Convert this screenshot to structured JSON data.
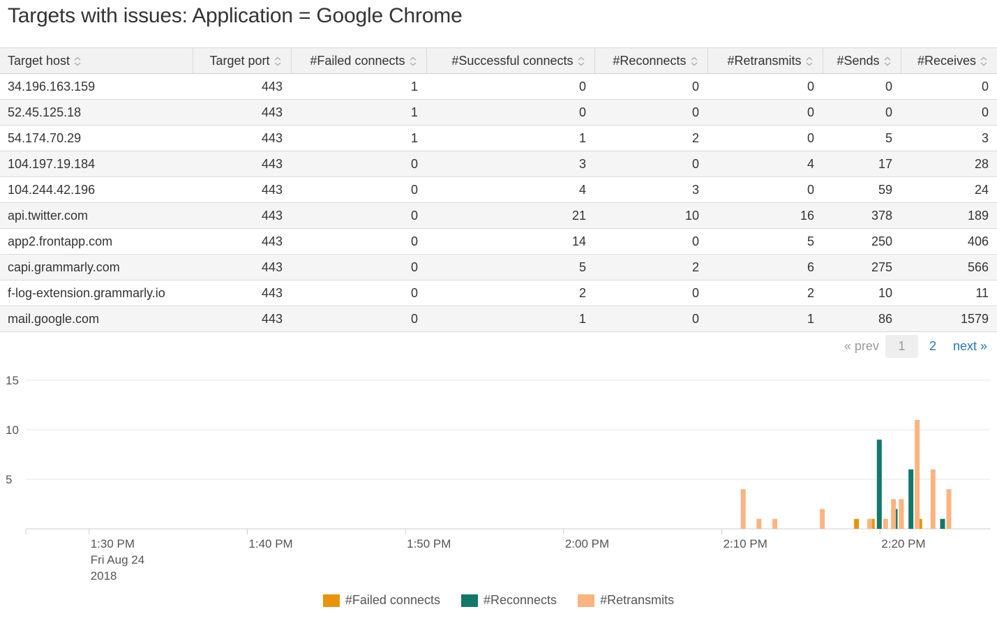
{
  "title": "Targets with issues: Application = Google Chrome",
  "table": {
    "columns": [
      "Target host",
      "Target port",
      "#Failed connects",
      "#Successful connects",
      "#Reconnects",
      "#Retransmits",
      "#Sends",
      "#Receives"
    ],
    "rows": [
      [
        "34.196.163.159",
        "443",
        "1",
        "0",
        "0",
        "0",
        "0",
        "0"
      ],
      [
        "52.45.125.18",
        "443",
        "1",
        "0",
        "0",
        "0",
        "0",
        "0"
      ],
      [
        "54.174.70.29",
        "443",
        "1",
        "1",
        "2",
        "0",
        "5",
        "3"
      ],
      [
        "104.197.19.184",
        "443",
        "0",
        "3",
        "0",
        "4",
        "17",
        "28"
      ],
      [
        "104.244.42.196",
        "443",
        "0",
        "4",
        "3",
        "0",
        "59",
        "24"
      ],
      [
        "api.twitter.com",
        "443",
        "0",
        "21",
        "10",
        "16",
        "378",
        "189"
      ],
      [
        "app2.frontapp.com",
        "443",
        "0",
        "14",
        "0",
        "5",
        "250",
        "406"
      ],
      [
        "capi.grammarly.com",
        "443",
        "0",
        "5",
        "2",
        "6",
        "275",
        "566"
      ],
      [
        "f-log-extension.grammarly.io",
        "443",
        "0",
        "2",
        "0",
        "2",
        "10",
        "11"
      ],
      [
        "mail.google.com",
        "443",
        "0",
        "1",
        "0",
        "1",
        "86",
        "1579"
      ]
    ]
  },
  "pagination": {
    "prev": "« prev",
    "current": "1",
    "pages": [
      "2"
    ],
    "next": "next »"
  },
  "chart_data": {
    "type": "bar",
    "ylim": [
      0,
      15
    ],
    "yticks": [
      5,
      10,
      15
    ],
    "xlim": [
      -4,
      57
    ],
    "xticks": [
      {
        "x": 0,
        "label": [
          "1:30 PM",
          "Fri Aug 24",
          "2018"
        ]
      },
      {
        "x": 10,
        "label": [
          "1:40 PM"
        ]
      },
      {
        "x": 20,
        "label": [
          "1:50 PM"
        ]
      },
      {
        "x": 30,
        "label": [
          "2:00 PM"
        ]
      },
      {
        "x": 40,
        "label": [
          "2:10 PM"
        ]
      },
      {
        "x": 50,
        "label": [
          "2:20 PM"
        ]
      }
    ],
    "x_unit": "minutes after 1:30 PM",
    "series": [
      {
        "name": "#Failed connects",
        "color": "#e8940a",
        "points": [
          [
            49,
            1
          ],
          [
            50,
            1
          ],
          [
            53,
            1
          ]
        ]
      },
      {
        "name": "#Reconnects",
        "color": "#11786a",
        "points": [
          [
            50,
            9
          ],
          [
            51,
            2
          ],
          [
            52,
            6
          ],
          [
            54,
            1
          ]
        ]
      },
      {
        "name": "#Retransmits",
        "color": "#fcb47f",
        "points": [
          [
            41,
            4
          ],
          [
            42,
            1
          ],
          [
            43,
            1
          ],
          [
            46,
            2
          ],
          [
            49,
            1
          ],
          [
            50,
            1
          ],
          [
            50.5,
            3
          ],
          [
            51,
            3
          ],
          [
            52,
            11
          ],
          [
            53,
            6
          ],
          [
            54,
            4
          ]
        ]
      }
    ]
  }
}
